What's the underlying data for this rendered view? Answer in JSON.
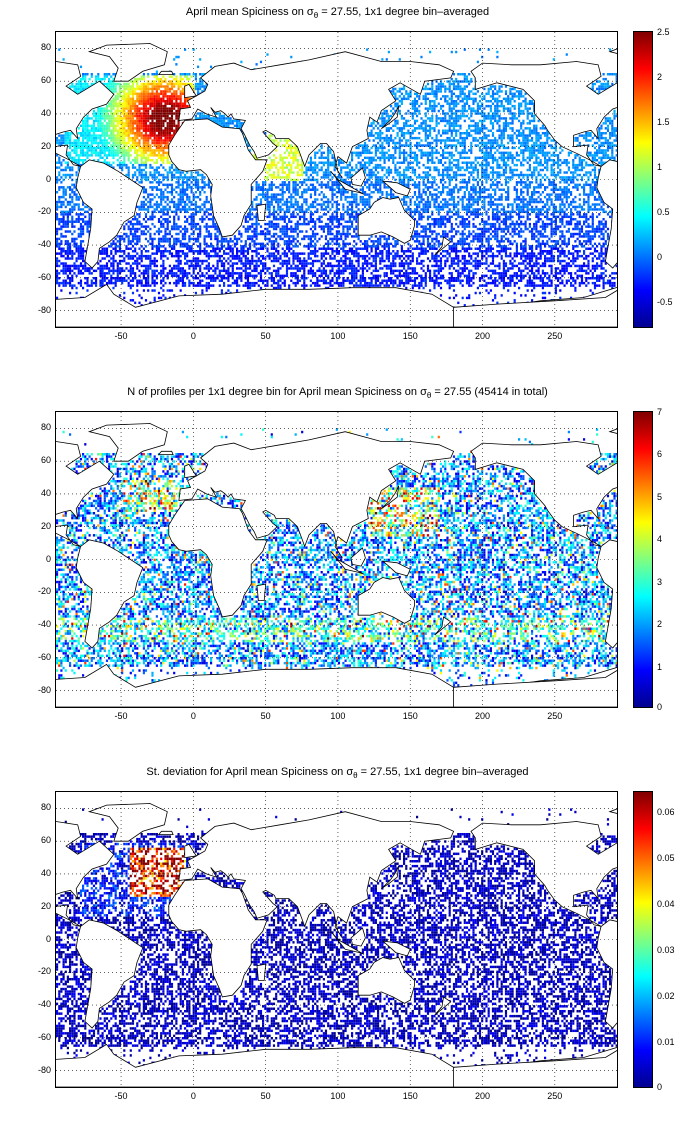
{
  "panels": [
    {
      "id": "spiciness",
      "title_pre": "April mean Spiciness on σ",
      "title_sub": "θ",
      "title_post": " = 27.55, 1x1 degree bin–averaged",
      "colorbar_ticks": [
        "2.5",
        "2",
        "1.5",
        "1",
        "0.5",
        "0",
        "-0.5"
      ],
      "colorbar_range": [
        -0.8,
        2.5
      ],
      "field": "spiciness"
    },
    {
      "id": "count",
      "title_pre": "N of profiles per 1x1 degree bin for April mean Spiciness on σ",
      "title_sub": "θ",
      "title_post": " = 27.55 (45414 in total)",
      "colorbar_ticks": [
        "7",
        "6",
        "5",
        "4",
        "3",
        "2",
        "1",
        "0"
      ],
      "colorbar_range": [
        0,
        7
      ],
      "field": "count"
    },
    {
      "id": "stddev",
      "title_pre": "St. deviation for April mean Spiciness on σ",
      "title_sub": "θ",
      "title_post": " = 27.55, 1x1 degree bin–averaged",
      "colorbar_ticks": [
        "0.06",
        "0.05",
        "0.04",
        "0.03",
        "0.02",
        "0.01",
        "0"
      ],
      "colorbar_range": [
        0,
        0.064
      ],
      "field": "stddev"
    }
  ],
  "x_ticks": [
    "-50",
    "0",
    "50",
    "100",
    "150",
    "200",
    "250"
  ],
  "y_ticks": [
    "80",
    "60",
    "40",
    "20",
    "0",
    "-20",
    "-40",
    "-60",
    "-80"
  ],
  "map_extent": {
    "lon": [
      -95,
      293
    ],
    "lat": [
      -90,
      90
    ]
  },
  "colors": {
    "land": "#ffffff",
    "coast": "#000000",
    "grid": "#000000"
  }
}
